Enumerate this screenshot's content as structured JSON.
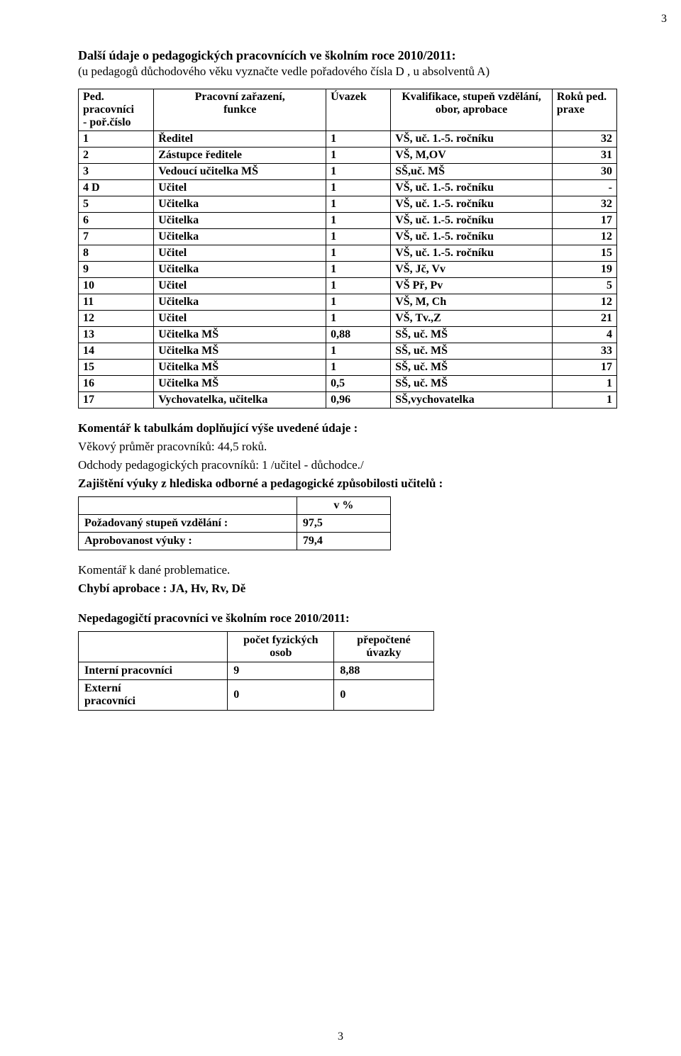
{
  "page_number_top": "3",
  "page_number_bottom": "3",
  "heading1": "Další údaje o pedagogických pracovnících ve školním roce 2010/2011:",
  "subheading1": "(u pedagogů důchodového věku vyznačte vedle pořadového čísla D , u absolventů A)",
  "main_table": {
    "headers": {
      "col1a": "Ped. pracovníci",
      "col1b": "- poř.číslo",
      "col2a": "Pracovní zařazení,",
      "col2b": "funkce",
      "col3": "Úvazek",
      "col4a": "Kvalifikace, stupeň vzdělání,",
      "col4b": "obor, aprobace",
      "col5a": "Roků ped.",
      "col5b": "praxe"
    },
    "rows": [
      [
        "1",
        "Ředitel",
        "1",
        "VŠ, uč. 1.-5. ročníku",
        "32"
      ],
      [
        "2",
        "Zástupce ředitele",
        "1",
        "VŠ, M,OV",
        "31"
      ],
      [
        "3",
        "Vedoucí učitelka MŠ",
        "1",
        "SŠ,uč. MŠ",
        "30"
      ],
      [
        "4 D",
        "Učitel",
        "1",
        "VŠ, uč. 1.-5. ročníku",
        "-"
      ],
      [
        "5",
        "Učitelka",
        "1",
        "VŠ, uč. 1.-5. ročníku",
        "32"
      ],
      [
        "6",
        "Učitelka",
        "1",
        "VŠ, uč. 1.-5. ročníku",
        "17"
      ],
      [
        "7",
        "Učitelka",
        "1",
        "VŠ, uč. 1.-5. ročníku",
        "12"
      ],
      [
        "8",
        "Učitel",
        "1",
        "VŠ, uč. 1.-5. ročníku",
        "15"
      ],
      [
        "9",
        "Učitelka",
        "1",
        "VŠ, Jč, Vv",
        "19"
      ],
      [
        "10",
        "Učitel",
        "1",
        "VŠ Př, Pv",
        "5"
      ],
      [
        "11",
        "Učitelka",
        "1",
        "VŠ, M, Ch",
        "12"
      ],
      [
        "12",
        "Učitel",
        "1",
        "VŠ, Tv.,Z",
        "21"
      ],
      [
        "13",
        "Učitelka MŠ",
        "0,88",
        "SŠ, uč. MŠ",
        "4"
      ],
      [
        "14",
        "Učitelka MŠ",
        "1",
        "SŠ, uč. MŠ",
        "33"
      ],
      [
        "15",
        "Učitelka MŠ",
        "1",
        "SŠ, uč. MŠ",
        "17"
      ],
      [
        "16",
        "Učitelka MŠ",
        "0,5",
        "SŠ, uč. MŠ",
        "1"
      ],
      [
        "17",
        "Vychovatelka, učitelka",
        "0,96",
        "SŠ,vychovatelka",
        "1"
      ]
    ]
  },
  "comment_heading": "Komentář k tabulkám doplňující výše uvedené údaje :",
  "age_avg_line": "Věkový průměr pracovníků: 44,5 roků.",
  "departures_line": "Odchody pedagogických pracovníků: 1 /učitel - důchodce./",
  "qualification_heading": "Zajištění výuky z hlediska odborné a pedagogické způsobilosti učitelů :",
  "pct_table": {
    "header_val": "v %",
    "rows": [
      [
        "Požadovaný stupeň vzdělání :",
        "97,5"
      ],
      [
        "Aprobovanost výuky :",
        "79,4"
      ]
    ]
  },
  "comment2_line": "Komentář k dané problematice.",
  "missing_approbation_line": "Chybí aprobace : JA, Hv,  Rv, Dě",
  "nonped_heading": "Nepedagogičtí pracovníci ve školním roce 2010/2011:",
  "staff_table": {
    "header_col2a": "počet fyzických",
    "header_col2b": "osob",
    "header_col3a": "přepočtené",
    "header_col3b": "úvazky",
    "rows": [
      [
        "Interní pracovníci",
        "9",
        "8,88"
      ],
      [
        "Externí pracovníci",
        "0",
        "0"
      ]
    ]
  }
}
